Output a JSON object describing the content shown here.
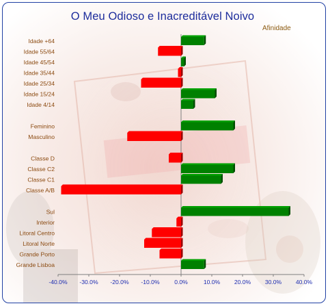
{
  "chart_data": {
    "type": "bar",
    "orientation": "horizontal",
    "title": "O Meu Odioso e Inacreditável Noivo",
    "series": [
      {
        "name": "Afinidade",
        "values": [
          7.5,
          -7.5,
          1.0,
          -1.0,
          -13.0,
          11.0,
          4.0,
          17.0,
          -17.5,
          -4.0,
          17.0,
          13.0,
          -39.0,
          35.0,
          -1.5,
          -9.5,
          -12.0,
          -7.0,
          7.5
        ]
      }
    ],
    "categories": [
      "Idade +64",
      "Idade 55/64",
      "Idade 45/54",
      "Idade 35/44",
      "Idade 25/34",
      "Idade 15/24",
      "Idade 4/14",
      "Feminino",
      "Masculino",
      "Classe D",
      "Classe C2",
      "Classe C1",
      "Classe A/B",
      "Sul",
      "Interior",
      "Litoral Centro",
      "Litoral Norte",
      "Grande Porto",
      "Grande Lisboa"
    ],
    "groups": [
      [
        "Idade +64",
        "Idade 55/64",
        "Idade 45/54",
        "Idade 35/44",
        "Idade 25/34",
        "Idade 15/24",
        "Idade 4/14"
      ],
      [
        "Feminino",
        "Masculino"
      ],
      [
        "Classe D",
        "Classe C2",
        "Classe C1",
        "Classe A/B"
      ],
      [
        "Sul",
        "Interior",
        "Litoral Centro",
        "Litoral Norte",
        "Grande Porto",
        "Grande Lisboa"
      ]
    ],
    "xlim": [
      -40,
      40
    ],
    "xticks": [
      -40,
      -30,
      -20,
      -10,
      0,
      10,
      20,
      30,
      40
    ],
    "xtick_labels": [
      "-40.0%",
      "-30.0%",
      "-20.0%",
      "-10.0%",
      "0.0%",
      "10.0%",
      "20.0%",
      "30.0%",
      "40.0%"
    ],
    "positive_color": "#008000",
    "negative_color": "#ff0000",
    "grid": false,
    "legend": "top-right"
  }
}
